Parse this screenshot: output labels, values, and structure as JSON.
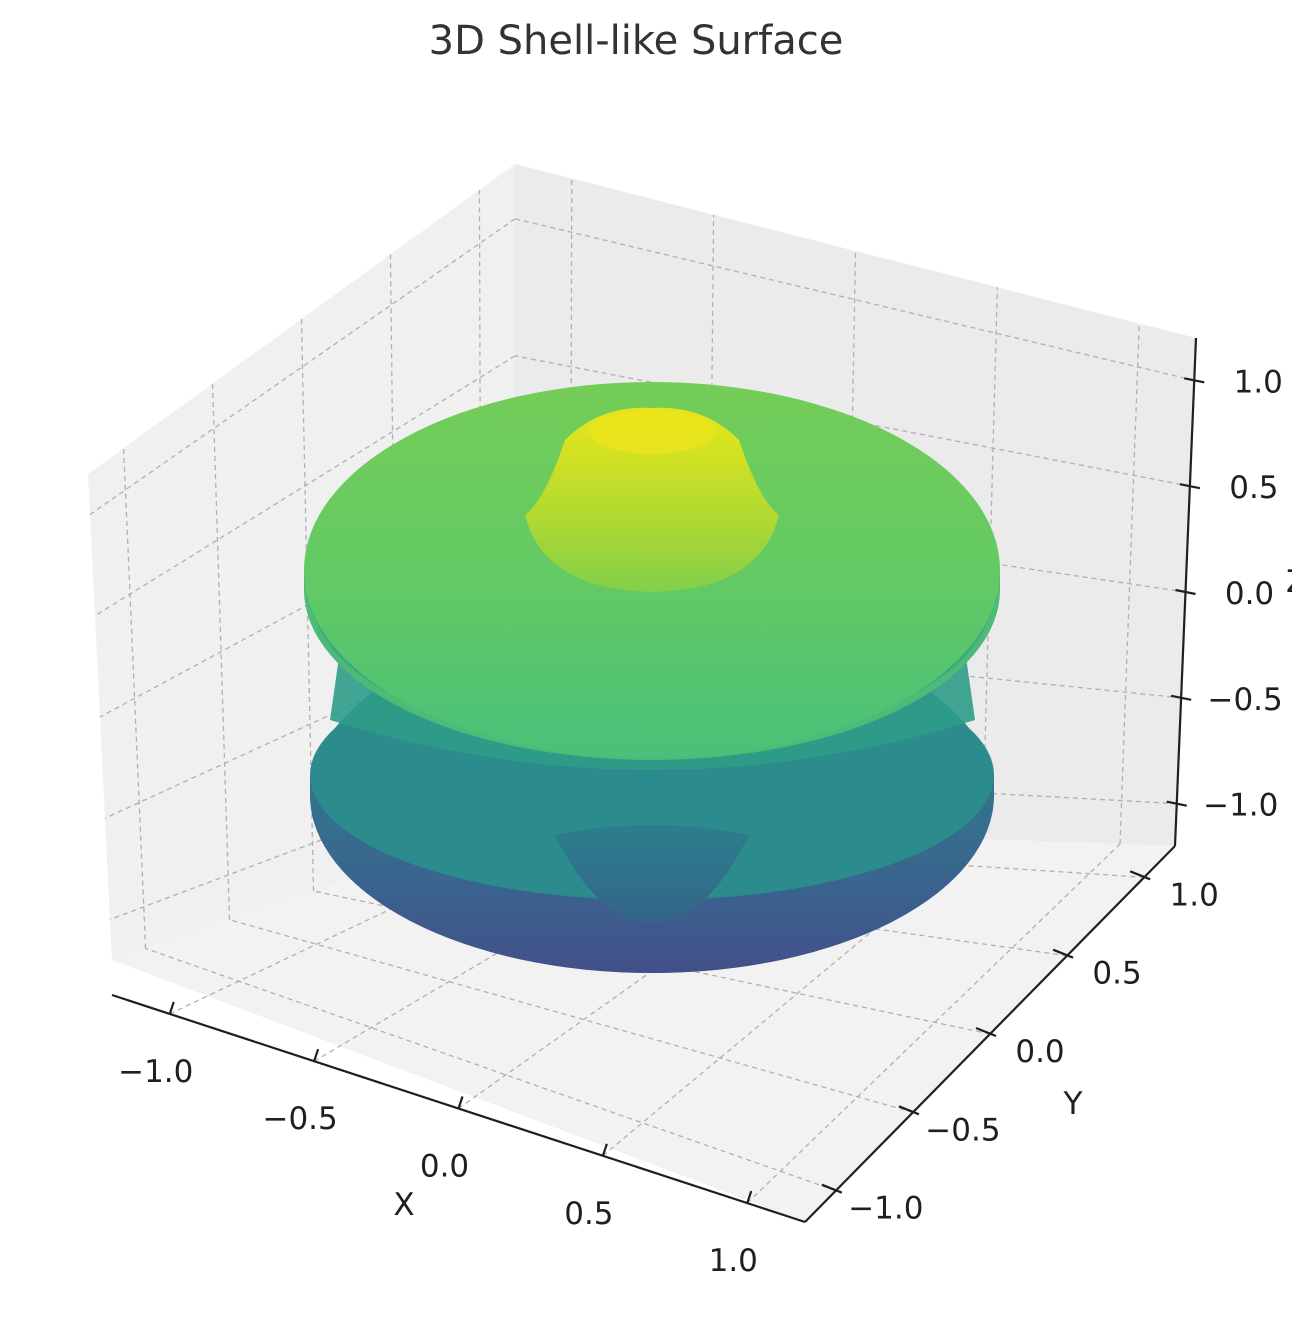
{
  "chart_data": {
    "type": "surface3d",
    "title": "3D Shell-like Surface",
    "xlabel": "X",
    "ylabel": "Y",
    "zlabel": "Z",
    "xlim": [
      -1.2,
      1.2
    ],
    "ylim": [
      -1.2,
      1.2
    ],
    "zlim": [
      -1.2,
      1.2
    ],
    "x_ticks": [
      "−1.0",
      "−0.5",
      "0.0",
      "0.5",
      "1.0"
    ],
    "y_ticks": [
      "−1.0",
      "−0.5",
      "0.0",
      "0.5",
      "1.0"
    ],
    "z_ticks": [
      "−1.0",
      "−0.5",
      "0.0",
      "0.5",
      "1.0"
    ],
    "tick_values": [
      -1.0,
      -0.5,
      0.0,
      0.5,
      1.0
    ],
    "colormap": "viridis",
    "grid": true,
    "shape": "shell: upper disk (radius ~1.0, z ~0.1 to 0.3) with central dome peaking near z = 1.0; lower disk (radius ~1.0, z ~ -0.5 to -0.9) with central depression",
    "colors": {
      "top_peak": "#e5e41a",
      "upper_disk": "#6ccb5c",
      "mid": "#2a9c8a",
      "lower_disk": "#3a5c8f",
      "bottom": "#414a87",
      "pane": "#f2f2f2"
    }
  }
}
